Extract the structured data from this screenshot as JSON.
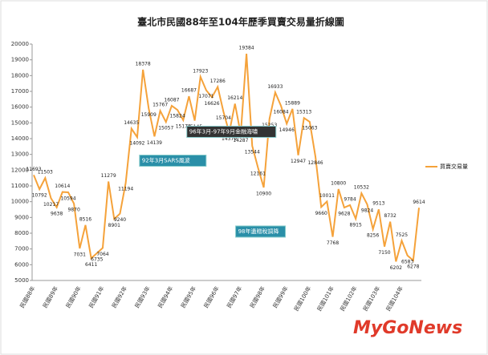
{
  "chart_data": {
    "type": "line",
    "title": "臺北市民國88年至104年歷季買賣交易量折線圖",
    "categories": [
      "民國88年",
      null,
      null,
      null,
      "民國89年",
      null,
      null,
      null,
      "民國90年",
      null,
      null,
      null,
      "民國91年",
      null,
      null,
      null,
      "民國92年",
      null,
      null,
      null,
      "民國93年",
      null,
      null,
      null,
      "民國94年",
      null,
      null,
      null,
      "民國95年",
      null,
      null,
      null,
      "民國96年",
      null,
      null,
      null,
      "民國97年",
      null,
      null,
      null,
      "民國98年",
      null,
      null,
      null,
      "民國99年",
      null,
      null,
      null,
      "民國100年",
      null,
      null,
      null,
      "民國101年",
      null,
      null,
      null,
      "民國102年",
      null,
      null,
      null,
      "民國103年",
      null,
      null,
      null,
      "民國104年",
      null,
      null,
      null
    ],
    "series": [
      {
        "name": "買賣交易量",
        "color": "#f5a23a",
        "values": [
          11693,
          10792,
          11503,
          10217,
          9638,
          10614,
          10594,
          9870,
          7031,
          8516,
          6411,
          6735,
          7064,
          11279,
          8901,
          9240,
          11194,
          14635,
          14092,
          18378,
          15909,
          14139,
          15767,
          15057,
          16087,
          15824,
          15174,
          16687,
          15145,
          17923,
          17071,
          16626,
          17286,
          15704,
          14379,
          16214,
          14287,
          19384,
          13544,
          12161,
          10900,
          15253,
          16933,
          16084,
          14946,
          15889,
          12947,
          15313,
          15063,
          12846,
          9660,
          10011,
          7768,
          10800,
          9628,
          9784,
          8915,
          10532,
          9824,
          8256,
          9513,
          7150,
          8732,
          6202,
          7525,
          6583,
          6278,
          9614
        ]
      }
    ],
    "ylim": [
      5000,
      20000
    ],
    "yticks": [
      5000,
      6000,
      7000,
      8000,
      9000,
      10000,
      11000,
      12000,
      13000,
      14000,
      15000,
      16000,
      17000,
      18000,
      19000,
      20000
    ],
    "grid": false,
    "legend": "right",
    "annotations": [
      {
        "text": "92年3月SARS風波",
        "index": 17,
        "color": "#2a8fa8"
      },
      {
        "text": "96年3月-97年9月金融海嘯",
        "index": 35,
        "color": "#333333"
      },
      {
        "text": "98年遺贈稅調降",
        "index": 40,
        "color": "#2a8fa8"
      }
    ],
    "watermark": "MyGoNews"
  }
}
